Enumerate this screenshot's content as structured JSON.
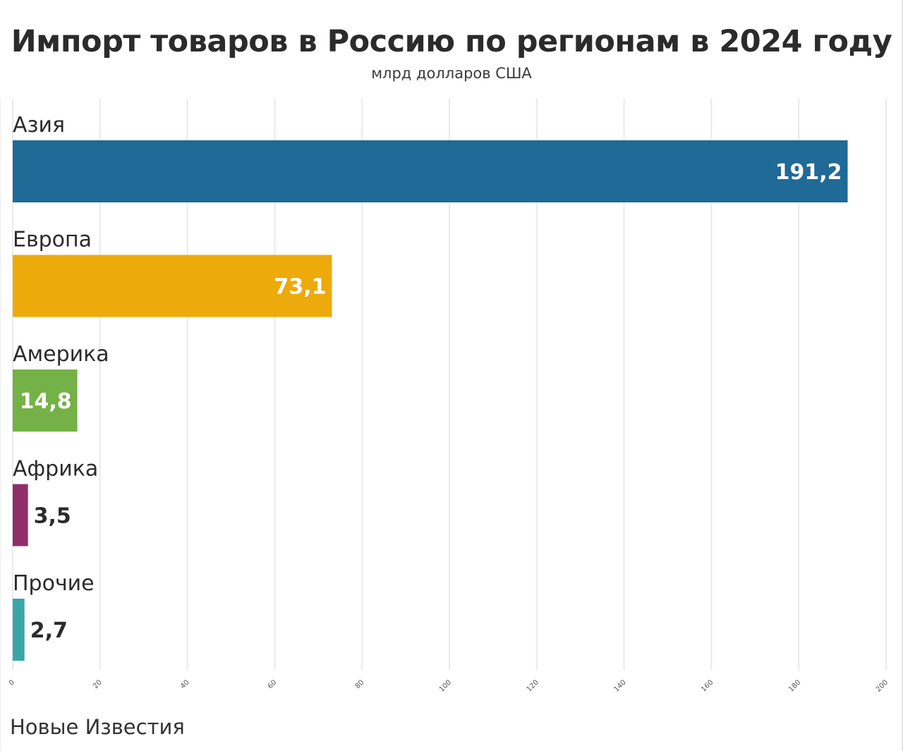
{
  "chart_data": {
    "type": "bar",
    "orientation": "horizontal",
    "title": "Импорт товаров в Россию по регионам в 2024 году",
    "subtitle": "млрд долларов США",
    "categories": [
      "Азия",
      "Европа",
      "Америка",
      "Африка",
      "Прочие"
    ],
    "values": [
      191.2,
      73.1,
      14.8,
      3.5,
      2.7
    ],
    "value_labels": [
      "191,2",
      "73,1",
      "14,8",
      "3,5",
      "2,7"
    ],
    "colors": [
      "#1f6a96",
      "#ecaa0b",
      "#74b146",
      "#8f2f6a",
      "#3aa5a7"
    ],
    "xlim": [
      0,
      200
    ],
    "x_ticks": [
      0,
      20,
      40,
      60,
      80,
      100,
      120,
      140,
      160,
      180,
      200
    ],
    "grid": true,
    "legend": "none"
  },
  "source": "Новые Известия"
}
